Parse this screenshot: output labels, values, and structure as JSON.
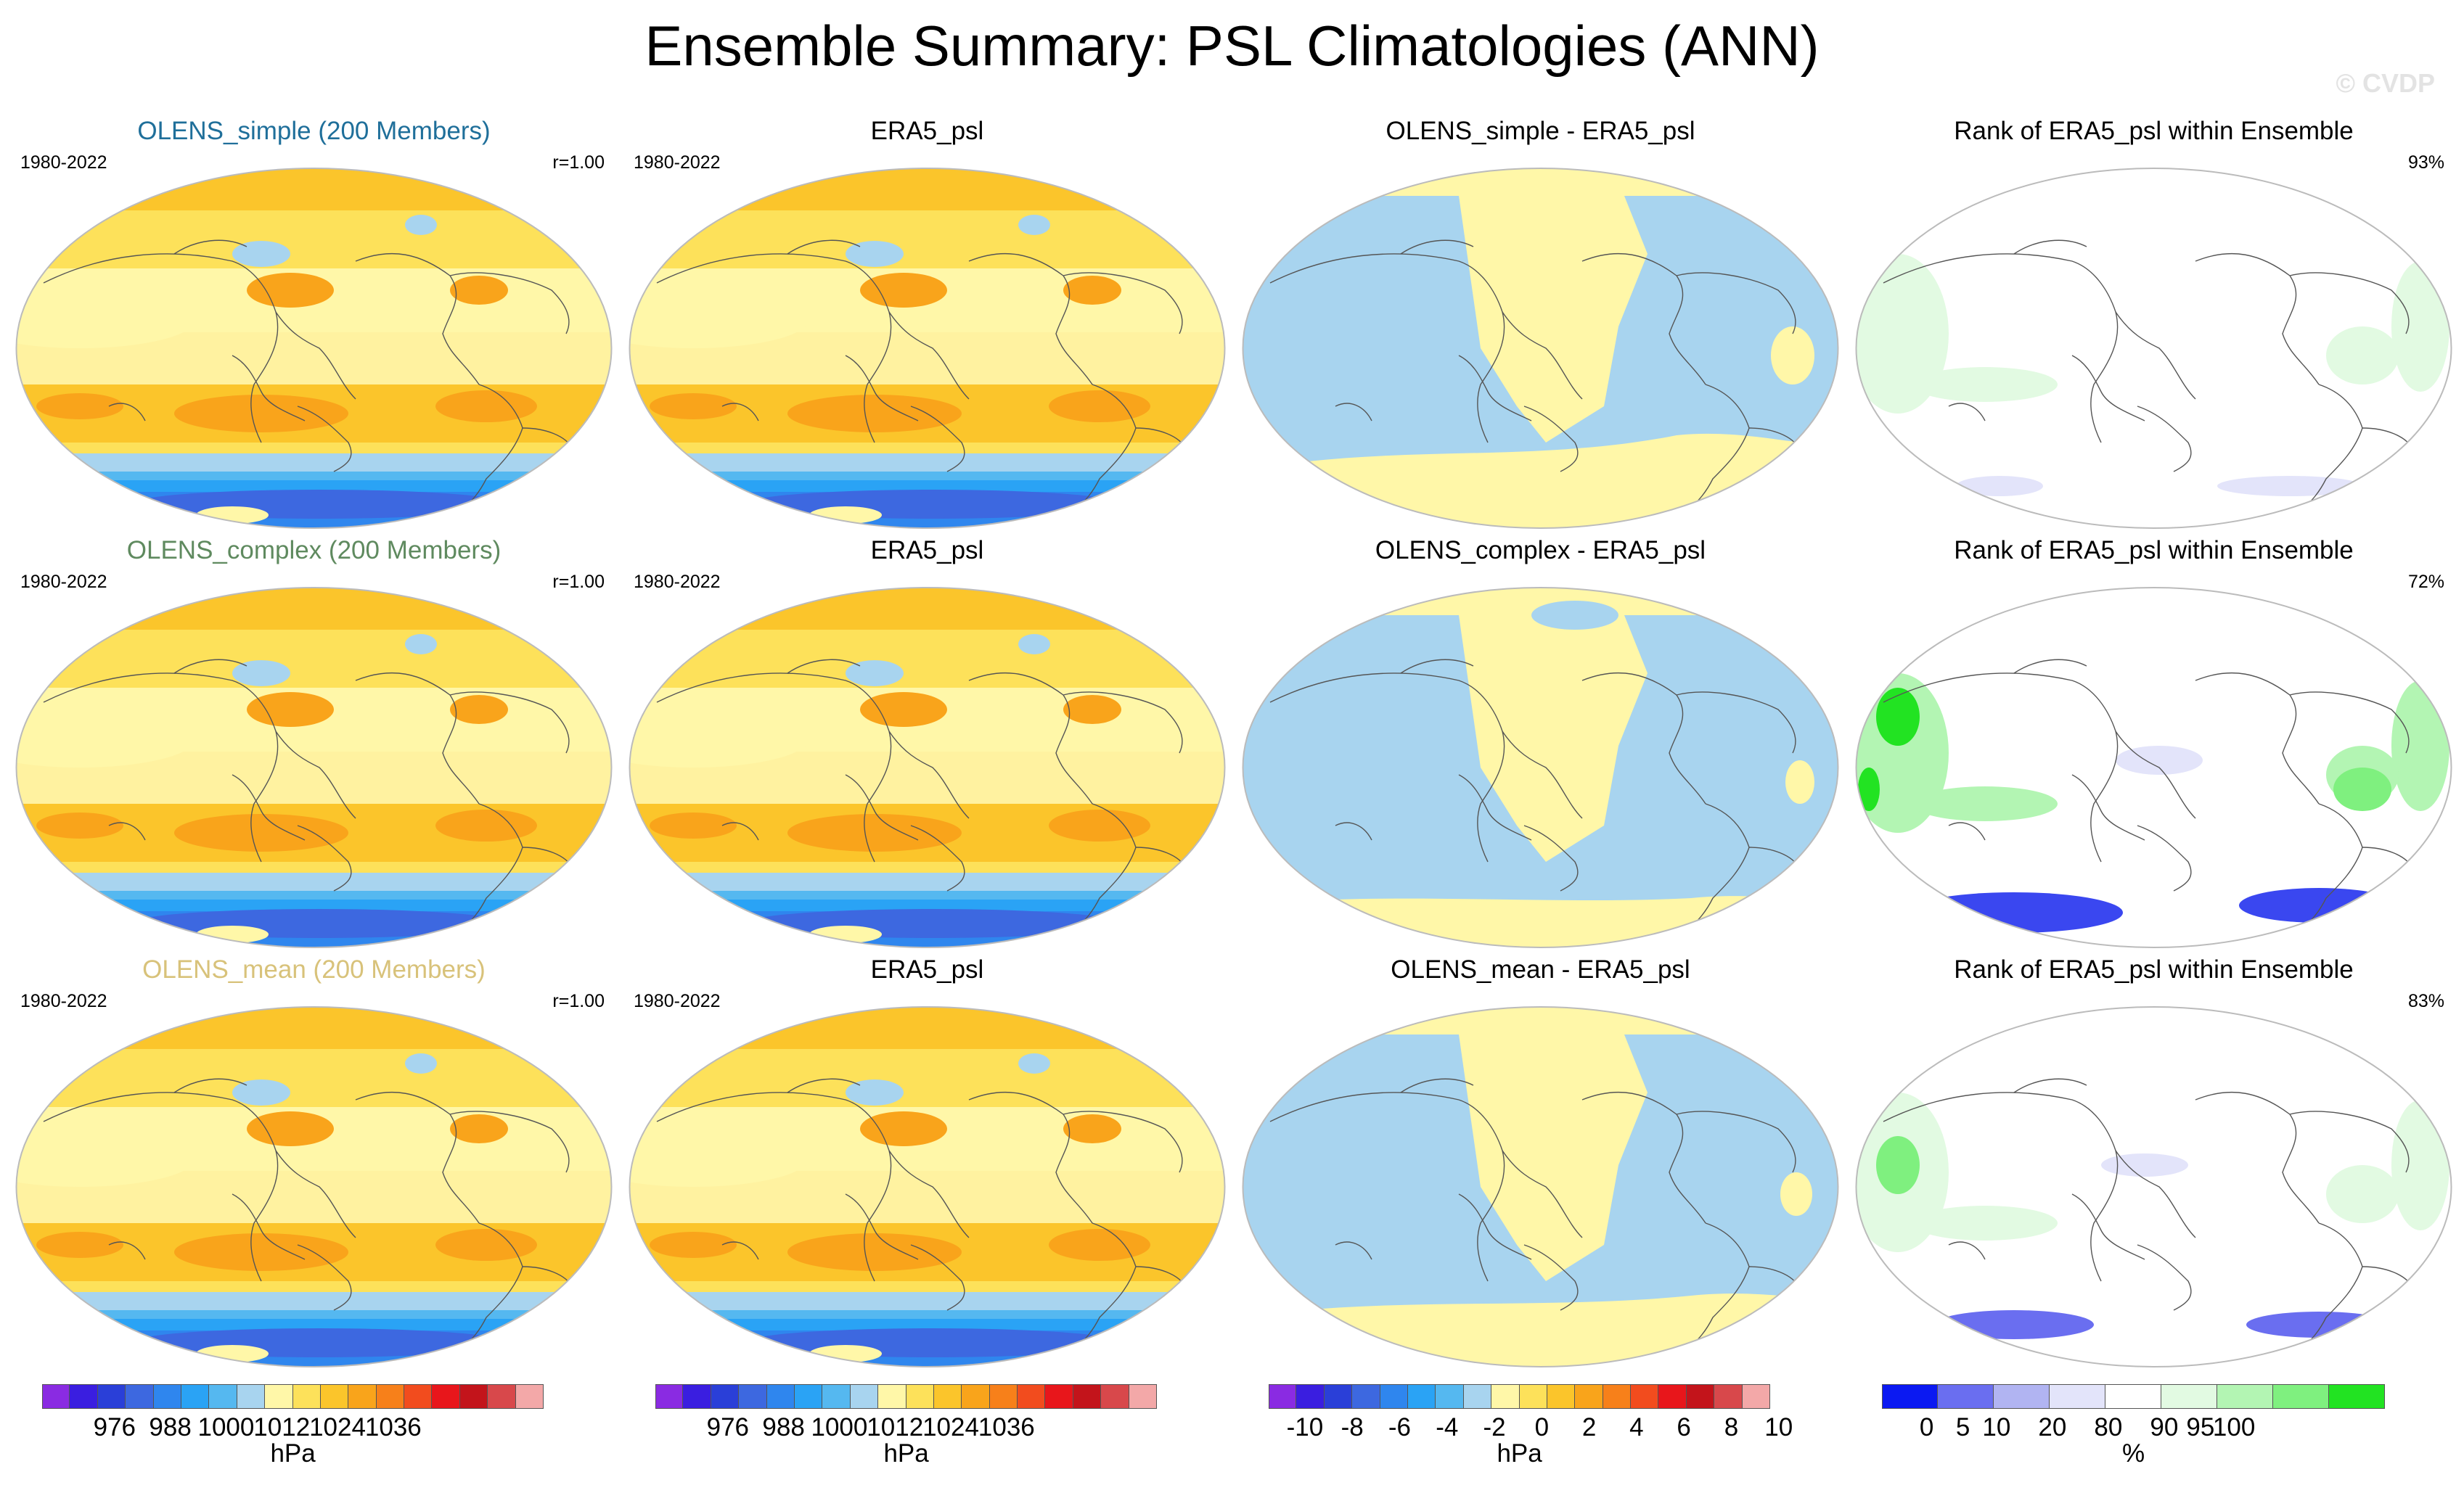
{
  "title": "Ensemble Summary: PSL Climatologies (ANN)",
  "watermark": "© CVDP",
  "rows": [
    {
      "ens": {
        "title": "OLENS_simple (200 Members)",
        "color": "#1f6f9a",
        "years": "1980-2022",
        "r": "r=1.00"
      },
      "obs": {
        "title": "ERA5_psl",
        "years": "1980-2022"
      },
      "diff": {
        "title": "OLENS_simple - ERA5_psl"
      },
      "rank": {
        "title": "Rank of ERA5_psl within Ensemble",
        "pct": "93%"
      }
    },
    {
      "ens": {
        "title": "OLENS_complex (200 Members)",
        "color": "#5f8a5f",
        "years": "1980-2022",
        "r": "r=1.00"
      },
      "obs": {
        "title": "ERA5_psl",
        "years": "1980-2022"
      },
      "diff": {
        "title": "OLENS_complex - ERA5_psl"
      },
      "rank": {
        "title": "Rank of ERA5_psl within Ensemble",
        "pct": "72%"
      }
    },
    {
      "ens": {
        "title": "OLENS_mean (200 Members)",
        "color": "#d8c27a",
        "years": "1980-2022",
        "r": "r=1.00"
      },
      "obs": {
        "title": "ERA5_psl",
        "years": "1980-2022"
      },
      "diff": {
        "title": "OLENS_mean - ERA5_psl"
      },
      "rank": {
        "title": "Rank of ERA5_psl within Ensemble",
        "pct": "83%"
      }
    }
  ],
  "colorbars": {
    "psl": {
      "colors": [
        "#8a2be2",
        "#3a1ee0",
        "#2a3fd8",
        "#3d68e0",
        "#2f86ee",
        "#2aa3f5",
        "#55b8f0",
        "#a8d4ef",
        "#fff7a8",
        "#fde15a",
        "#fbc52b",
        "#f9a41b",
        "#f7801a",
        "#f24c1e",
        "#e8161b",
        "#c3141b",
        "#d8484b",
        "#f3a8a8"
      ],
      "labels": [
        "976",
        "988",
        "1000",
        "1012",
        "1024",
        "1036"
      ],
      "unit": "hPa"
    },
    "diff": {
      "colors": [
        "#8a2be2",
        "#3a1ee0",
        "#2a3fd8",
        "#3d68e0",
        "#2f86ee",
        "#2aa3f5",
        "#55b8f0",
        "#a8d4ef",
        "#fff7a8",
        "#fde15a",
        "#fbc52b",
        "#f9a41b",
        "#f7801a",
        "#f24c1e",
        "#e8161b",
        "#c3141b",
        "#d8484b",
        "#f3a8a8"
      ],
      "labels": [
        "-10",
        "-8",
        "-6",
        "-4",
        "-2",
        "0",
        "2",
        "4",
        "6",
        "8",
        "10"
      ],
      "unit": "hPa"
    },
    "rank": {
      "colors": [
        "#0b19f2",
        "#6a6ef0",
        "#b1b4f2",
        "#e3e4fa",
        "#ffffff",
        "#e2fae2",
        "#b3f5b3",
        "#7ff07f",
        "#22e322"
      ],
      "labels": [
        "0",
        "5",
        "10",
        "20",
        "80",
        "90",
        "95",
        "100"
      ],
      "unit": "%"
    }
  }
}
